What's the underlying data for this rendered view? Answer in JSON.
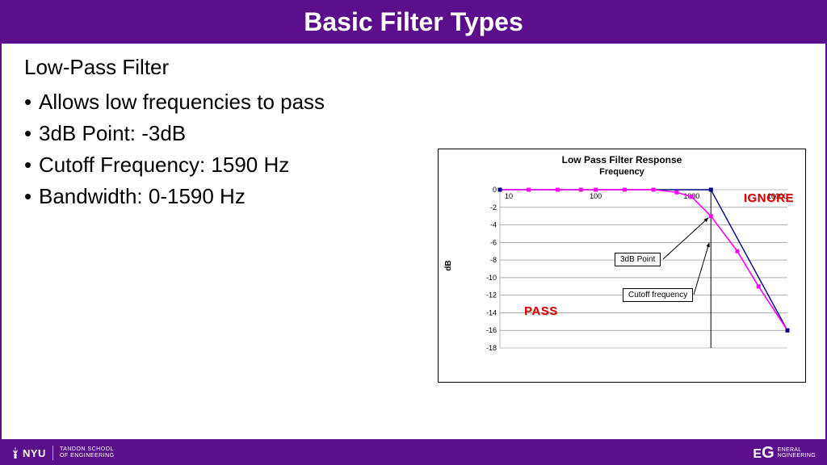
{
  "title": "Basic Filter Types",
  "heading": "Low-Pass Filter",
  "bullets": [
    "Allows low frequencies to pass",
    "3dB Point: -3dB",
    "Cutoff Frequency: 1590 Hz",
    "Bandwidth: 0-1590 Hz"
  ],
  "footer": {
    "nyu": "NYU",
    "school_line1": "TANDON SCHOOL",
    "school_line2": "OF ENGINEERING",
    "eg_e": "E",
    "eg_g": "G",
    "eg_line1": "ENERAL",
    "eg_line2": "NGINEERING"
  },
  "chart": {
    "title": "Low Pass Filter Response",
    "subtitle": "Frequency",
    "ylabel": "dB",
    "pass_label": "PASS",
    "ignore_label": "IGNORE",
    "annot_3db": "3dB Point",
    "annot_cutoff": "Cutoff frequency",
    "background_color": "#ffffff",
    "grid_color": "#808080",
    "series1_color": "#ff00ff",
    "series2_color": "#000080",
    "marker_color": "#ff00ff",
    "cutoff_line_color": "#000000",
    "xscale": "log",
    "xlim": [
      10,
      10000
    ],
    "ylim": [
      -18,
      0
    ],
    "ytick_step": 2,
    "xticks": [
      10,
      100,
      1000,
      10000
    ],
    "xtick_labels": [
      "10",
      "100",
      "1000",
      "10000"
    ],
    "yticks": [
      0,
      -2,
      -4,
      -6,
      -8,
      -10,
      -12,
      -14,
      -16,
      -18
    ],
    "cutoff_x": 1590,
    "series_pink": {
      "x": [
        10,
        20,
        40,
        70,
        100,
        200,
        400,
        700,
        1000,
        1590,
        3000,
        5000,
        10000
      ],
      "y": [
        0,
        0,
        0,
        0,
        0,
        0,
        0,
        -0.3,
        -0.8,
        -3,
        -7,
        -11,
        -16
      ]
    },
    "series_blue": {
      "x": [
        10,
        1590,
        10000
      ],
      "y": [
        0,
        0,
        -16
      ]
    },
    "arrow_color": "#000000",
    "label_fontsize": 10,
    "title_fontsize": 12
  },
  "colors": {
    "brand": "#5b0e8b",
    "text": "#000000",
    "annot_red": "#d80000"
  }
}
